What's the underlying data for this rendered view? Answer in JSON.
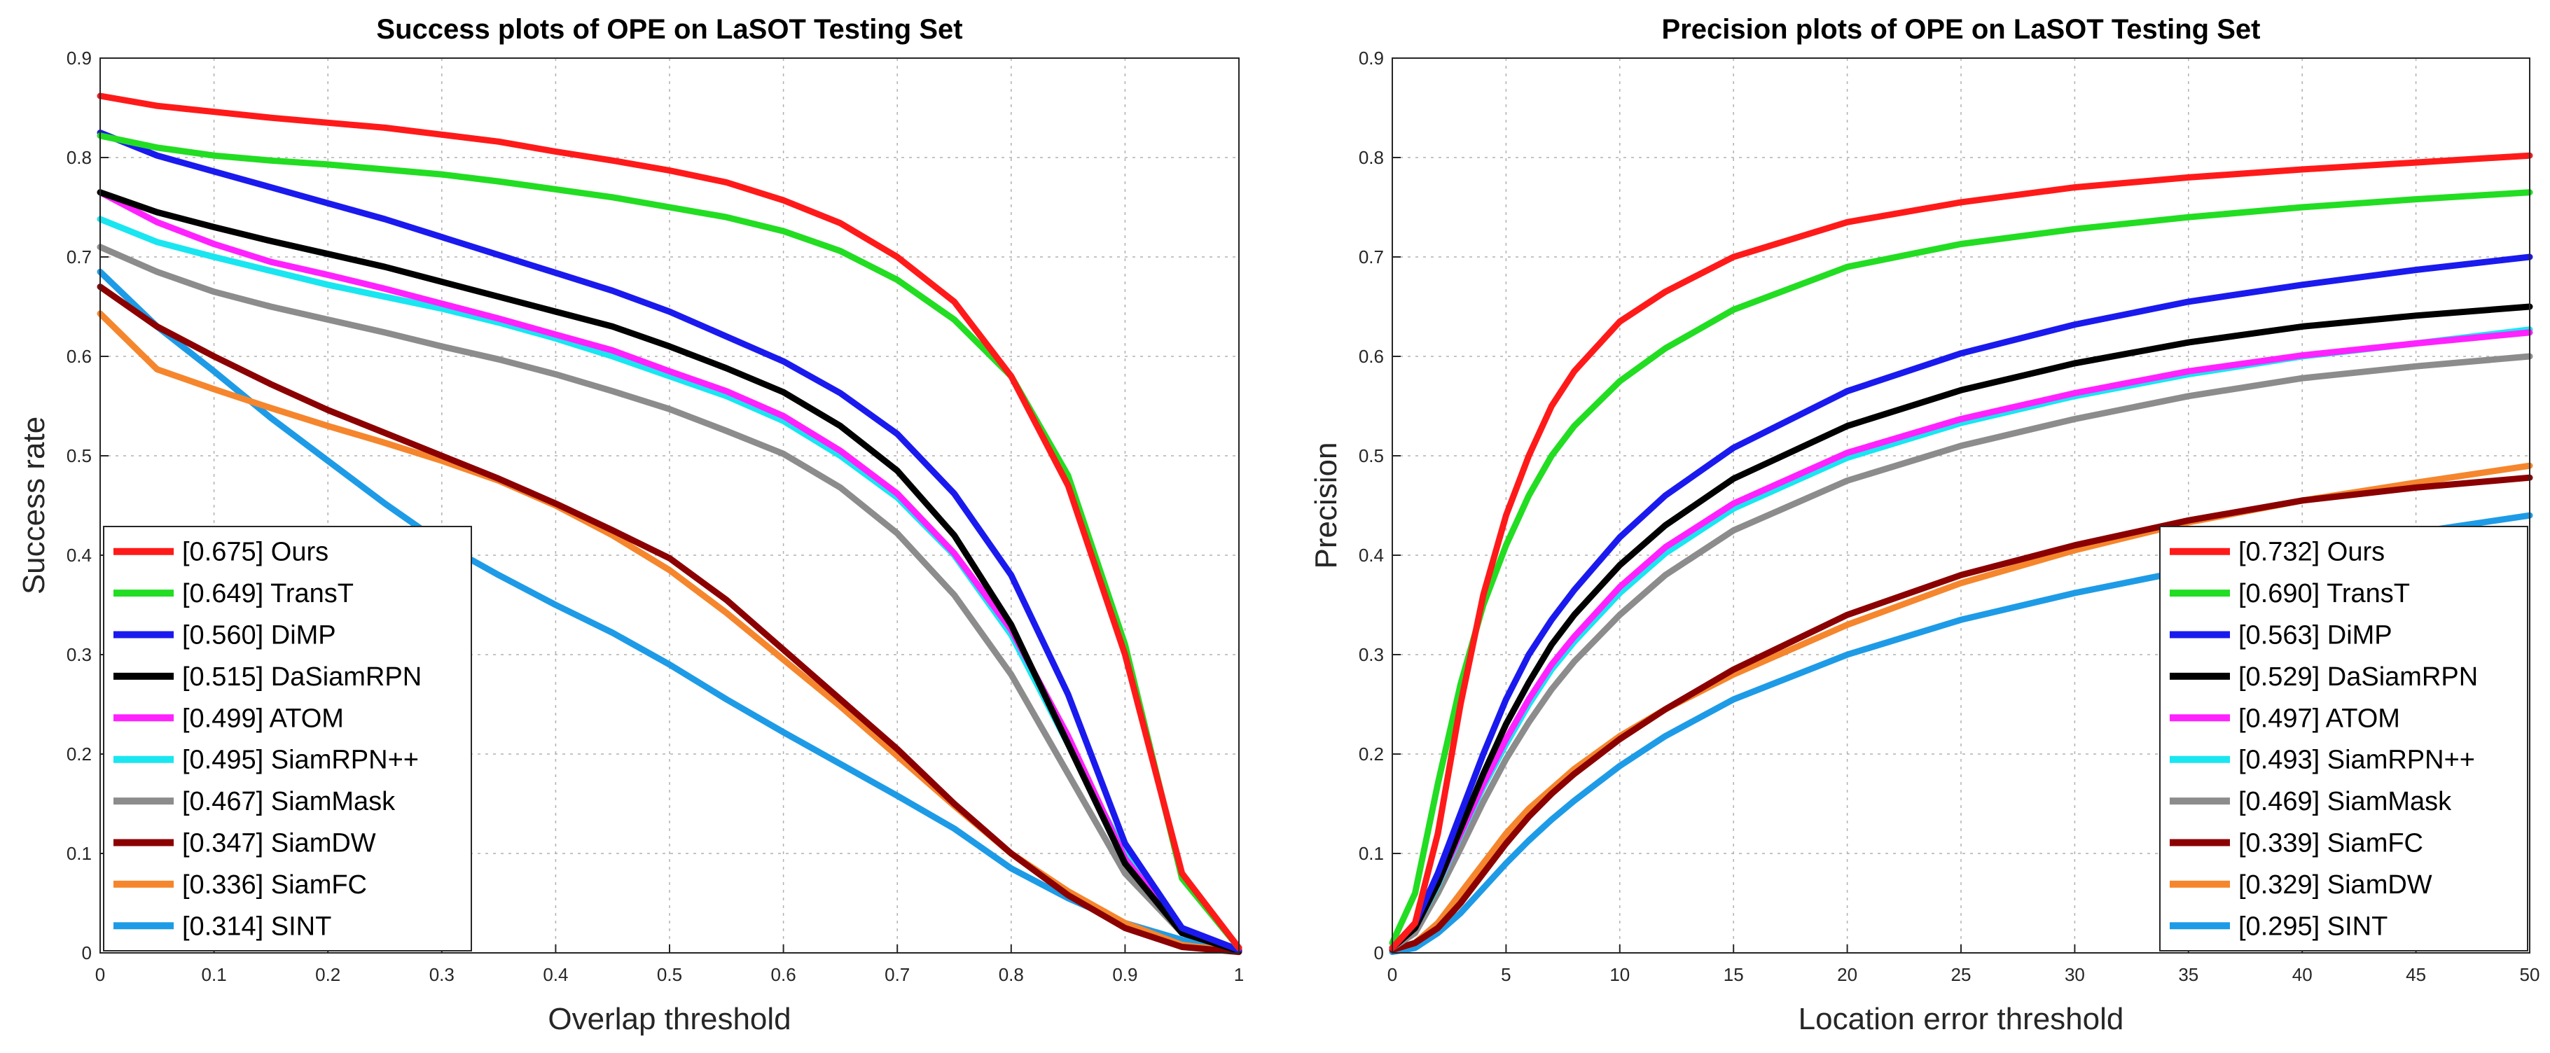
{
  "chart_data": [
    {
      "type": "line",
      "title": "Success plots of OPE on LaSOT Testing Set",
      "xlabel": "Overlap threshold",
      "ylabel": "Success rate",
      "xlim": [
        0,
        1
      ],
      "ylim": [
        0,
        0.9
      ],
      "xticks": [
        0,
        0.1,
        0.2,
        0.3,
        0.4,
        0.5,
        0.6,
        0.7,
        0.8,
        0.9,
        1
      ],
      "xtick_labels": [
        "0",
        "0.1",
        "0.2",
        "0.3",
        "0.4",
        "0.5",
        "0.6",
        "0.7",
        "0.8",
        "0.9",
        "1"
      ],
      "yticks": [
        0,
        0.1,
        0.2,
        0.3,
        0.4,
        0.5,
        0.6,
        0.7,
        0.8,
        0.9
      ],
      "ytick_labels": [
        "0",
        "0.1",
        "0.2",
        "0.3",
        "0.4",
        "0.5",
        "0.6",
        "0.7",
        "0.8",
        "0.9"
      ],
      "grid": true,
      "legend_position": "bottom-left",
      "x": [
        0,
        0.05,
        0.1,
        0.15,
        0.2,
        0.25,
        0.3,
        0.35,
        0.4,
        0.45,
        0.5,
        0.55,
        0.6,
        0.65,
        0.7,
        0.75,
        0.8,
        0.85,
        0.9,
        0.95,
        1
      ],
      "series": [
        {
          "name": "[0.675] Ours",
          "color": "#ff1a1a",
          "values": [
            0.862,
            0.852,
            0.846,
            0.84,
            0.835,
            0.83,
            0.823,
            0.816,
            0.806,
            0.797,
            0.787,
            0.775,
            0.757,
            0.734,
            0.7,
            0.655,
            0.58,
            0.47,
            0.3,
            0.08,
            0.005
          ]
        },
        {
          "name": "[0.649] TransT",
          "color": "#22dd22",
          "values": [
            0.822,
            0.81,
            0.802,
            0.797,
            0.793,
            0.788,
            0.783,
            0.776,
            0.768,
            0.76,
            0.75,
            0.74,
            0.726,
            0.706,
            0.677,
            0.637,
            0.58,
            0.48,
            0.31,
            0.075,
            0.005
          ]
        },
        {
          "name": "[0.560] DiMP",
          "color": "#1a1aee",
          "values": [
            0.825,
            0.802,
            0.786,
            0.77,
            0.754,
            0.738,
            0.72,
            0.702,
            0.684,
            0.666,
            0.645,
            0.62,
            0.595,
            0.563,
            0.522,
            0.462,
            0.38,
            0.26,
            0.11,
            0.025,
            0.003
          ]
        },
        {
          "name": "[0.515] DaSiamRPN",
          "color": "#000000",
          "values": [
            0.765,
            0.745,
            0.73,
            0.716,
            0.703,
            0.69,
            0.675,
            0.66,
            0.645,
            0.63,
            0.61,
            0.588,
            0.564,
            0.53,
            0.485,
            0.42,
            0.33,
            0.21,
            0.09,
            0.02,
            0.002
          ]
        },
        {
          "name": "[0.499] ATOM",
          "color": "#ff22ff",
          "values": [
            0.765,
            0.735,
            0.713,
            0.695,
            0.682,
            0.668,
            0.653,
            0.638,
            0.622,
            0.606,
            0.585,
            0.565,
            0.54,
            0.505,
            0.462,
            0.402,
            0.325,
            0.218,
            0.095,
            0.022,
            0.002
          ]
        },
        {
          "name": "[0.495] SiamRPN++",
          "color": "#19e6f0",
          "values": [
            0.738,
            0.715,
            0.7,
            0.686,
            0.672,
            0.66,
            0.648,
            0.634,
            0.618,
            0.6,
            0.58,
            0.56,
            0.535,
            0.5,
            0.458,
            0.4,
            0.32,
            0.21,
            0.1,
            0.025,
            0.002
          ]
        },
        {
          "name": "[0.467] SiamMask",
          "color": "#8c8c8c",
          "values": [
            0.71,
            0.685,
            0.665,
            0.65,
            0.637,
            0.624,
            0.61,
            0.597,
            0.582,
            0.565,
            0.547,
            0.525,
            0.502,
            0.468,
            0.422,
            0.36,
            0.28,
            0.18,
            0.08,
            0.02,
            0.002
          ]
        },
        {
          "name": "[0.347] SiamDW",
          "color": "#8b0000",
          "values": [
            0.67,
            0.63,
            0.6,
            0.572,
            0.546,
            0.523,
            0.5,
            0.477,
            0.452,
            0.425,
            0.397,
            0.355,
            0.305,
            0.255,
            0.205,
            0.15,
            0.1,
            0.058,
            0.025,
            0.006,
            0.001
          ]
        },
        {
          "name": "[0.336] SiamFC",
          "color": "#f5862d",
          "values": [
            0.643,
            0.587,
            0.567,
            0.548,
            0.53,
            0.513,
            0.495,
            0.475,
            0.45,
            0.42,
            0.385,
            0.342,
            0.295,
            0.248,
            0.198,
            0.148,
            0.1,
            0.062,
            0.03,
            0.008,
            0.001
          ]
        },
        {
          "name": "[0.314] SINT",
          "color": "#1e9be6",
          "values": [
            0.685,
            0.63,
            0.585,
            0.538,
            0.495,
            0.452,
            0.412,
            0.38,
            0.35,
            0.322,
            0.29,
            0.255,
            0.222,
            0.19,
            0.158,
            0.125,
            0.085,
            0.055,
            0.03,
            0.013,
            0.002
          ]
        }
      ]
    },
    {
      "type": "line",
      "title": "Precision plots of OPE on LaSOT Testing Set",
      "xlabel": "Location error threshold",
      "ylabel": "Precision",
      "xlim": [
        0,
        50
      ],
      "ylim": [
        0,
        0.9
      ],
      "xticks": [
        0,
        5,
        10,
        15,
        20,
        25,
        30,
        35,
        40,
        45,
        50
      ],
      "xtick_labels": [
        "0",
        "5",
        "10",
        "15",
        "20",
        "25",
        "30",
        "35",
        "40",
        "45",
        "50"
      ],
      "yticks": [
        0,
        0.1,
        0.2,
        0.3,
        0.4,
        0.5,
        0.6,
        0.7,
        0.8,
        0.9
      ],
      "ytick_labels": [
        "0",
        "0.1",
        "0.2",
        "0.3",
        "0.4",
        "0.5",
        "0.6",
        "0.7",
        "0.8",
        "0.9"
      ],
      "grid": true,
      "legend_position": "bottom-right",
      "x": [
        0,
        1,
        2,
        3,
        4,
        5,
        6,
        7,
        8,
        10,
        12,
        15,
        20,
        25,
        30,
        35,
        40,
        45,
        50
      ],
      "series": [
        {
          "name": "[0.732] Ours",
          "color": "#ff1a1a",
          "values": [
            0.005,
            0.03,
            0.12,
            0.25,
            0.36,
            0.44,
            0.5,
            0.55,
            0.585,
            0.635,
            0.665,
            0.7,
            0.735,
            0.755,
            0.77,
            0.78,
            0.788,
            0.795,
            0.802
          ]
        },
        {
          "name": "[0.690] TransT",
          "color": "#22dd22",
          "values": [
            0.01,
            0.06,
            0.17,
            0.27,
            0.35,
            0.41,
            0.46,
            0.5,
            0.53,
            0.575,
            0.608,
            0.647,
            0.69,
            0.713,
            0.728,
            0.74,
            0.75,
            0.758,
            0.765
          ]
        },
        {
          "name": "[0.563] DiMP",
          "color": "#1a1aee",
          "values": [
            0.005,
            0.03,
            0.08,
            0.14,
            0.2,
            0.255,
            0.3,
            0.335,
            0.365,
            0.418,
            0.46,
            0.508,
            0.565,
            0.603,
            0.632,
            0.655,
            0.672,
            0.687,
            0.7
          ]
        },
        {
          "name": "[0.529] DaSiamRPN",
          "color": "#000000",
          "values": [
            0.005,
            0.025,
            0.07,
            0.125,
            0.18,
            0.23,
            0.272,
            0.31,
            0.34,
            0.39,
            0.43,
            0.477,
            0.53,
            0.566,
            0.593,
            0.614,
            0.63,
            0.641,
            0.65
          ]
        },
        {
          "name": "[0.497] ATOM",
          "color": "#ff22ff",
          "values": [
            0.005,
            0.025,
            0.07,
            0.12,
            0.17,
            0.215,
            0.255,
            0.29,
            0.318,
            0.368,
            0.408,
            0.452,
            0.503,
            0.537,
            0.563,
            0.585,
            0.601,
            0.613,
            0.624
          ]
        },
        {
          "name": "[0.493] SiamRPN++",
          "color": "#19e6f0",
          "values": [
            0.005,
            0.025,
            0.068,
            0.118,
            0.167,
            0.21,
            0.25,
            0.285,
            0.313,
            0.362,
            0.402,
            0.447,
            0.498,
            0.533,
            0.56,
            0.582,
            0.6,
            0.613,
            0.627
          ]
        },
        {
          "name": "[0.469] SiamMask",
          "color": "#8c8c8c",
          "values": [
            0.005,
            0.02,
            0.06,
            0.105,
            0.152,
            0.195,
            0.232,
            0.265,
            0.293,
            0.34,
            0.38,
            0.425,
            0.475,
            0.51,
            0.537,
            0.56,
            0.578,
            0.59,
            0.6
          ]
        },
        {
          "name": "[0.339] SiamFC",
          "color": "#8b0000",
          "values": [
            0.003,
            0.01,
            0.025,
            0.05,
            0.08,
            0.11,
            0.137,
            0.16,
            0.18,
            0.215,
            0.245,
            0.285,
            0.34,
            0.38,
            0.41,
            0.435,
            0.455,
            0.468,
            0.478
          ]
        },
        {
          "name": "[0.329] SiamDW",
          "color": "#f5862d",
          "values": [
            0.003,
            0.01,
            0.03,
            0.06,
            0.09,
            0.12,
            0.145,
            0.165,
            0.185,
            0.218,
            0.245,
            0.28,
            0.33,
            0.372,
            0.405,
            0.433,
            0.455,
            0.473,
            0.49
          ]
        },
        {
          "name": "[0.295] SINT",
          "color": "#1e9be6",
          "values": [
            0.001,
            0.005,
            0.02,
            0.04,
            0.065,
            0.09,
            0.113,
            0.134,
            0.153,
            0.188,
            0.218,
            0.255,
            0.3,
            0.335,
            0.362,
            0.385,
            0.405,
            0.423,
            0.44
          ]
        }
      ]
    }
  ]
}
